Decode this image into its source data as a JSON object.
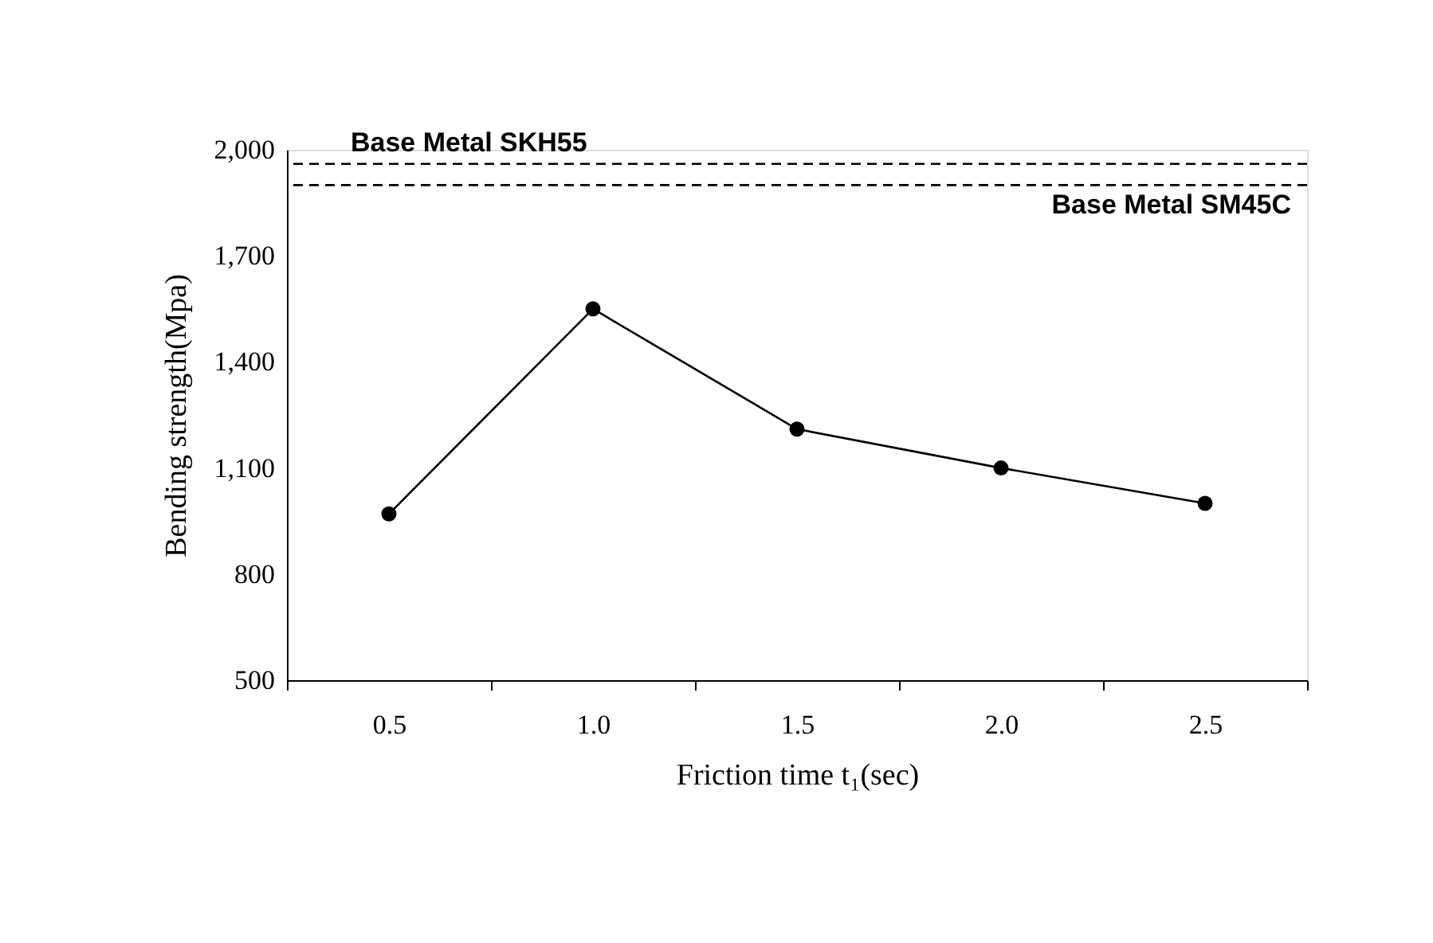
{
  "chart_data": {
    "type": "line",
    "xlabel": "Friction time t₁(sec)",
    "ylabel": "Bending strength(Mpa)",
    "categories": [
      "0.5",
      "1.0",
      "1.5",
      "2.0",
      "2.5"
    ],
    "series": [
      {
        "color": "#000000",
        "values": [
          970,
          1550,
          1210,
          1100,
          1000
        ]
      }
    ],
    "ylim": [
      500,
      2000
    ],
    "yticks": [
      {
        "value": 500,
        "label": "500"
      },
      {
        "value": 800,
        "label": "800"
      },
      {
        "value": 1100,
        "label": "1,100"
      },
      {
        "value": 1400,
        "label": "1,400"
      },
      {
        "value": 1700,
        "label": "1,700"
      },
      {
        "value": 2000,
        "label": "2,000"
      }
    ],
    "ref_lines": [
      {
        "axis": "y",
        "value": 1960,
        "label": "Base Metal SKH55",
        "line_style": "dashed",
        "color": "#000000"
      },
      {
        "axis": "y",
        "value": 1900,
        "label": "Base Metal SM45C",
        "line_style": "dashed",
        "color": "#000000"
      }
    ],
    "marker": "circle",
    "line_style": "solid",
    "grid": false
  }
}
